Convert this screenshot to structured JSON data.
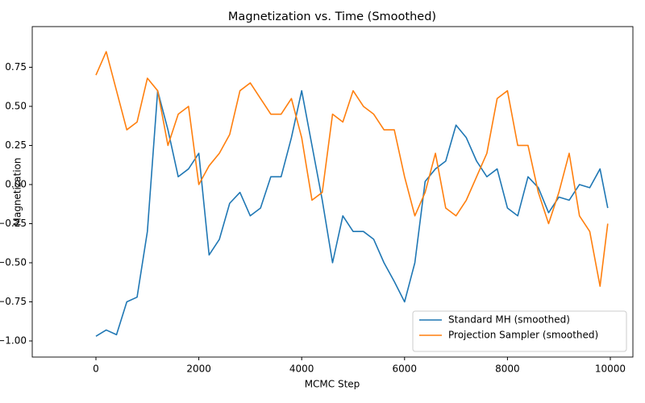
{
  "chart_data": {
    "type": "line",
    "title": "Magnetization vs. Time (Smoothed)",
    "x_label": "MCMC Step",
    "y_label": "Magnetization",
    "x": [
      0,
      200,
      400,
      600,
      800,
      1000,
      1200,
      1400,
      1600,
      1800,
      2000,
      2200,
      2400,
      2600,
      2800,
      3000,
      3200,
      3400,
      3600,
      3800,
      4000,
      4200,
      4400,
      4600,
      4800,
      5000,
      5200,
      5400,
      5600,
      5800,
      6000,
      6200,
      6400,
      6600,
      6800,
      7000,
      7200,
      7400,
      7600,
      7800,
      8000,
      8200,
      8400,
      8600,
      8800,
      9000,
      9200,
      9400,
      9600,
      9800,
      9950
    ],
    "series": [
      {
        "name": "Standard MH (smoothed)",
        "color": "#1f77b4",
        "values": [
          -0.97,
          -0.93,
          -0.96,
          -0.75,
          -0.72,
          -0.3,
          0.6,
          0.35,
          0.05,
          0.1,
          0.2,
          -0.45,
          -0.35,
          -0.12,
          -0.05,
          -0.2,
          -0.15,
          0.05,
          0.05,
          0.3,
          0.6,
          0.25,
          -0.1,
          -0.5,
          -0.2,
          -0.3,
          -0.3,
          -0.35,
          -0.5,
          -0.62,
          -0.75,
          -0.5,
          0.02,
          0.1,
          0.15,
          0.38,
          0.3,
          0.15,
          0.05,
          0.1,
          -0.15,
          -0.2,
          0.05,
          -0.02,
          -0.18,
          -0.08,
          -0.1,
          0.0,
          -0.02,
          0.1,
          -0.15
        ]
      },
      {
        "name": "Projection Sampler (smoothed)",
        "color": "#ff7f0e",
        "values": [
          0.7,
          0.85,
          0.6,
          0.35,
          0.4,
          0.68,
          0.6,
          0.25,
          0.45,
          0.5,
          0.0,
          0.12,
          0.2,
          0.32,
          0.6,
          0.65,
          0.55,
          0.45,
          0.45,
          0.55,
          0.3,
          -0.1,
          -0.05,
          0.45,
          0.4,
          0.6,
          0.5,
          0.45,
          0.35,
          0.35,
          0.05,
          -0.2,
          -0.05,
          0.2,
          -0.15,
          -0.2,
          -0.1,
          0.05,
          0.2,
          0.55,
          0.6,
          0.25,
          0.25,
          -0.05,
          -0.25,
          -0.05,
          0.2,
          -0.2,
          -0.3,
          -0.65,
          -0.25
        ]
      }
    ],
    "xlim": [
      -1238,
      10439
    ],
    "ylim": [
      -1.103,
      1.01
    ],
    "xticks": [
      0,
      2000,
      4000,
      6000,
      8000,
      10000
    ],
    "yticks": [
      {
        "value": -1,
        "label": "−1.00"
      },
      {
        "value": -0.75,
        "label": "−0.75"
      },
      {
        "value": -0.5,
        "label": "−0.50"
      },
      {
        "value": -0.25,
        "label": "−0.25"
      },
      {
        "value": 0,
        "label": "0.00"
      },
      {
        "value": 0.25,
        "label": "0.25"
      },
      {
        "value": 0.5,
        "label": "0.50"
      },
      {
        "value": 0.75,
        "label": "0.75"
      }
    ],
    "grid": false,
    "legend": "lower right"
  }
}
